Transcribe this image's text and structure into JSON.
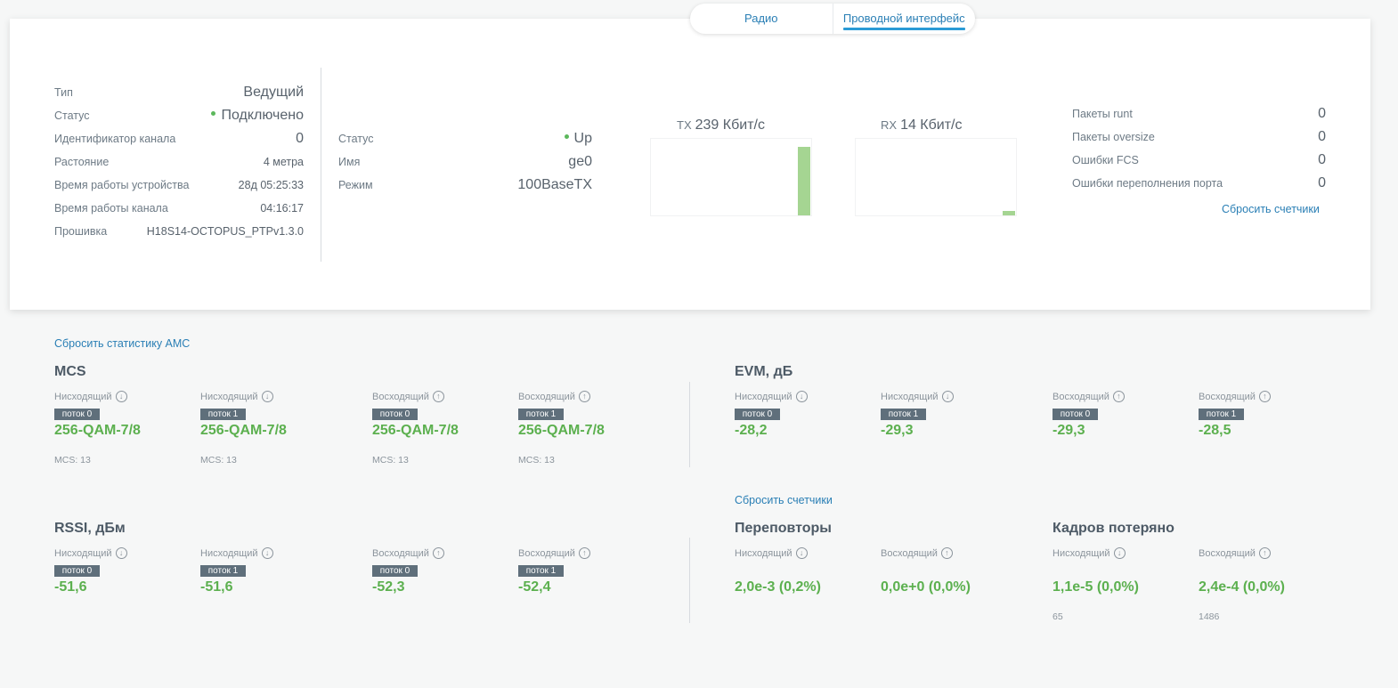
{
  "tabs": [
    {
      "label": "Радио",
      "active": false
    },
    {
      "label": "Проводной интерфейс",
      "active": true
    }
  ],
  "device": {
    "type_label": "Тип",
    "type_value": "Ведущий",
    "status_label": "Статус",
    "status_value": "Подключено",
    "channel_id_label": "Идентификатор канала",
    "channel_id_value": "0",
    "distance_label": "Растояние",
    "distance_value": "4 метра",
    "uptime_device_label": "Время работы устройства",
    "uptime_device_value": "28д 05:25:33",
    "uptime_channel_label": "Время работы канала",
    "uptime_channel_value": "04:16:17",
    "firmware_label": "Прошивка",
    "firmware_value": "H18S14-OCTOPUS_PTPv1.3.0"
  },
  "interface": {
    "status_label": "Статус",
    "status_value": "Up",
    "name_label": "Имя",
    "name_value": "ge0",
    "mode_label": "Режим",
    "mode_value": "100BaseTX"
  },
  "traffic": {
    "tx_prefix": "TX",
    "tx_value": "239 Кбит/с",
    "tx_level": 0.9,
    "rx_prefix": "RX",
    "rx_value": "14 Кбит/с",
    "rx_level": 0.06,
    "bar_color": "#a5d592"
  },
  "counters": {
    "rows": [
      {
        "label": "Пакеты runt",
        "value": "0"
      },
      {
        "label": "Пакеты oversize",
        "value": "0"
      },
      {
        "label": "Ошибки FCS",
        "value": "0"
      },
      {
        "label": "Ошибки переполнения порта",
        "value": "0"
      }
    ],
    "reset_label": "Сбросить счетчики"
  },
  "amc_reset_label": "Сбросить статистику AMC",
  "mcs": {
    "title": "MCS",
    "items": [
      {
        "dir": "Нисходящий",
        "stream": "поток 0",
        "value": "256-QAM-7/8",
        "note": "MCS: 13"
      },
      {
        "dir": "Нисходящий",
        "stream": "поток 1",
        "value": "256-QAM-7/8",
        "note": "MCS: 13"
      },
      {
        "dir": "Восходящий",
        "stream": "поток 0",
        "value": "256-QAM-7/8",
        "note": "MCS: 13"
      },
      {
        "dir": "Восходящий",
        "stream": "поток 1",
        "value": "256-QAM-7/8",
        "note": "MCS: 13"
      }
    ]
  },
  "evm": {
    "title": "EVM, дБ",
    "items": [
      {
        "dir": "Нисходящий",
        "stream": "поток 0",
        "value": "-28,2"
      },
      {
        "dir": "Нисходящий",
        "stream": "поток 1",
        "value": "-29,3"
      },
      {
        "dir": "Восходящий",
        "stream": "поток 0",
        "value": "-29,3"
      },
      {
        "dir": "Восходящий",
        "stream": "поток 1",
        "value": "-28,5"
      }
    ]
  },
  "rssi": {
    "title": "RSSI, дБм",
    "items": [
      {
        "dir": "Нисходящий",
        "stream": "поток 0",
        "value": "-51,6"
      },
      {
        "dir": "Нисходящий",
        "stream": "поток 1",
        "value": "-51,6"
      },
      {
        "dir": "Восходящий",
        "stream": "поток 0",
        "value": "-52,3"
      },
      {
        "dir": "Восходящий",
        "stream": "поток 1",
        "value": "-52,4"
      }
    ]
  },
  "retx_reset_label": "Сбросить счетчики",
  "retransmits": {
    "title": "Переповторы",
    "items": [
      {
        "dir": "Нисходящий",
        "value": "2,0e-3 (0,2%)"
      },
      {
        "dir": "Восходящий",
        "value": "0,0e+0 (0,0%)"
      }
    ]
  },
  "lost": {
    "title": "Кадров потеряно",
    "items": [
      {
        "dir": "Нисходящий",
        "value": "1,1e-5 (0,0%)",
        "note": "65"
      },
      {
        "dir": "Восходящий",
        "value": "2,4e-4 (0,0%)",
        "note": "1486"
      }
    ]
  }
}
